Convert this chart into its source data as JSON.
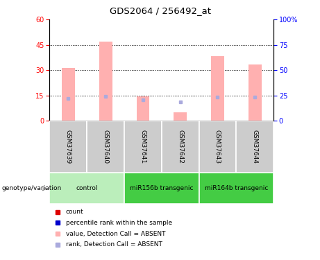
{
  "title": "GDS2064 / 256492_at",
  "samples": [
    "GSM37639",
    "GSM37640",
    "GSM37641",
    "GSM37642",
    "GSM37643",
    "GSM37644"
  ],
  "pink_bar_heights": [
    31.5,
    47.0,
    14.5,
    5.0,
    38.5,
    33.5
  ],
  "blue_marker_values": [
    22.0,
    24.5,
    20.5,
    18.5,
    23.5,
    23.5
  ],
  "ylim_left": [
    0,
    60
  ],
  "ylim_right": [
    0,
    100
  ],
  "yticks_left": [
    0,
    15,
    30,
    45,
    60
  ],
  "yticks_right": [
    0,
    25,
    50,
    75,
    100
  ],
  "bar_color": "#FFB0B0",
  "blue_marker_color": "#AAAADD",
  "sample_bg_color": "#CCCCCC",
  "group_colors": [
    "#BBEEBB",
    "#44CC44",
    "#44CC44"
  ],
  "groups_data": [
    {
      "label": "control",
      "start": 0,
      "end": 2
    },
    {
      "label": "miR156b transgenic",
      "start": 2,
      "end": 4
    },
    {
      "label": "miR164b transgenic",
      "start": 4,
      "end": 6
    }
  ],
  "legend_colors": [
    "#DD0000",
    "#0000CC",
    "#FFB0B0",
    "#AAAADD"
  ],
  "legend_labels": [
    "count",
    "percentile rank within the sample",
    "value, Detection Call = ABSENT",
    "rank, Detection Call = ABSENT"
  ],
  "genotype_label": "genotype/variation",
  "bar_width": 0.35
}
